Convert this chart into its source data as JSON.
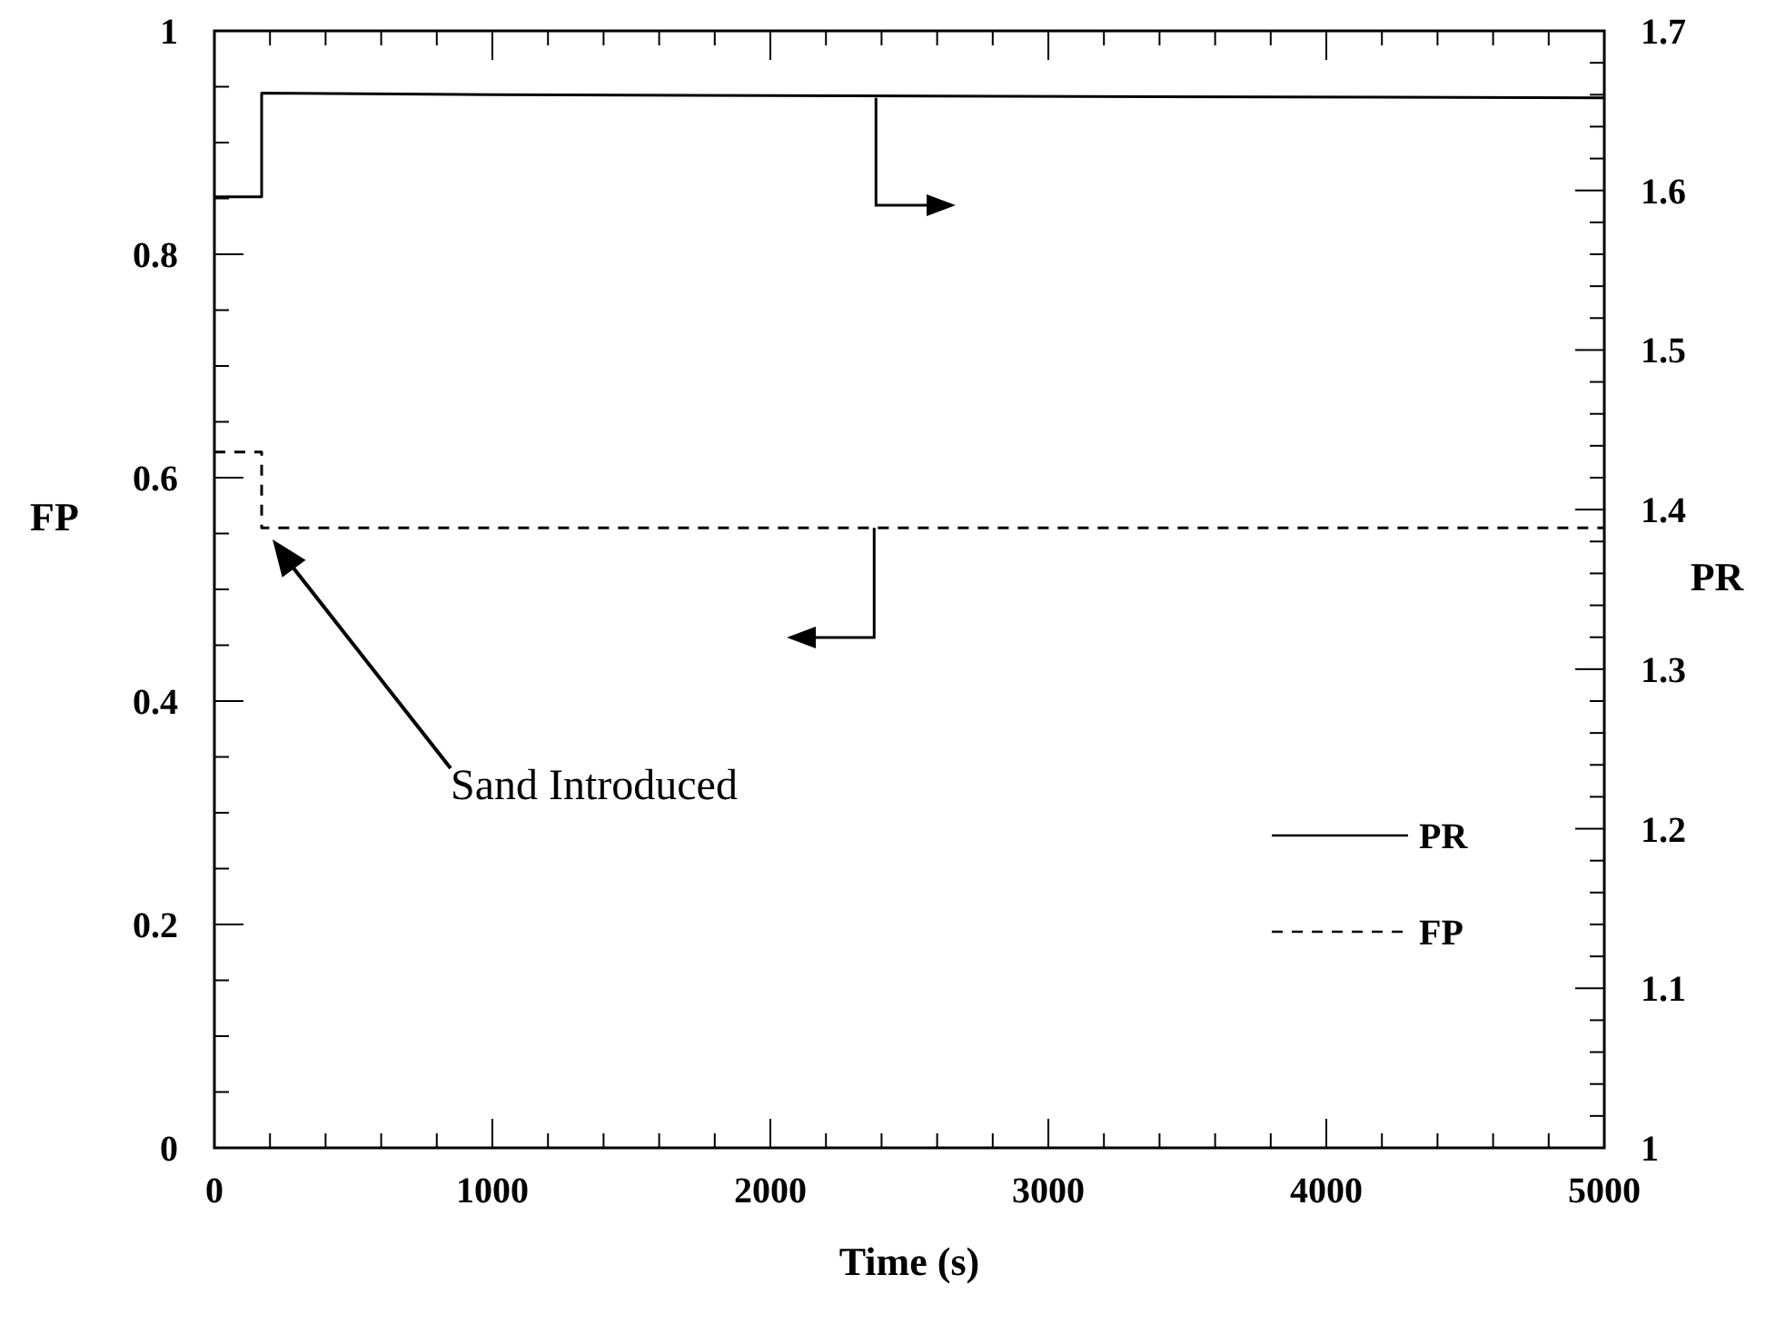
{
  "chart_data": {
    "type": "line",
    "xlabel": "Time (s)",
    "ylabel": "FP",
    "y2label": "PR",
    "xlim": [
      0,
      5000
    ],
    "xticks": [
      0,
      {
        "value": 200,
        "label": null
      },
      {
        "value": 400,
        "label": null
      },
      {
        "value": 600,
        "label": null
      },
      {
        "value": 800,
        "label": null
      },
      1000,
      {
        "value": 1200,
        "label": null
      },
      {
        "value": 1400,
        "label": null
      },
      {
        "value": 1600,
        "label": null
      },
      {
        "value": 1800,
        "label": null
      },
      2000,
      {
        "value": 2200,
        "label": null
      },
      {
        "value": 2400,
        "label": null
      },
      {
        "value": 2600,
        "label": null
      },
      {
        "value": 2800,
        "label": null
      },
      3000,
      {
        "value": 3200,
        "label": null
      },
      {
        "value": 3400,
        "label": null
      },
      {
        "value": 3600,
        "label": null
      },
      {
        "value": 3800,
        "label": null
      },
      4000,
      {
        "value": 4200,
        "label": null
      },
      {
        "value": 4400,
        "label": null
      },
      {
        "value": 4600,
        "label": null
      },
      {
        "value": 4800,
        "label": null
      },
      5000
    ],
    "ylim": [
      0,
      1
    ],
    "yticks": [
      0,
      {
        "value": 0.05,
        "label": null
      },
      {
        "value": 0.1,
        "label": null
      },
      {
        "value": 0.15,
        "label": null
      },
      0.2,
      {
        "value": 0.25,
        "label": null
      },
      {
        "value": 0.3,
        "label": null
      },
      {
        "value": 0.35,
        "label": null
      },
      0.4,
      {
        "value": 0.45,
        "label": null
      },
      {
        "value": 0.5,
        "label": null
      },
      {
        "value": 0.55,
        "label": null
      },
      0.6,
      {
        "value": 0.65,
        "label": null
      },
      {
        "value": 0.7,
        "label": null
      },
      {
        "value": 0.75,
        "label": null
      },
      0.8,
      {
        "value": 0.85,
        "label": null
      },
      {
        "value": 0.9,
        "label": null
      },
      {
        "value": 0.95,
        "label": null
      },
      1
    ],
    "y2lim": [
      1,
      1.7
    ],
    "y2ticks": [
      1,
      {
        "value": 1.02,
        "label": null
      },
      {
        "value": 1.04,
        "label": null
      },
      {
        "value": 1.06,
        "label": null
      },
      {
        "value": 1.08,
        "label": null
      },
      1.1,
      {
        "value": 1.12,
        "label": null
      },
      {
        "value": 1.14,
        "label": null
      },
      {
        "value": 1.16,
        "label": null
      },
      {
        "value": 1.18,
        "label": null
      },
      1.2,
      {
        "value": 1.22,
        "label": null
      },
      {
        "value": 1.24,
        "label": null
      },
      {
        "value": 1.26,
        "label": null
      },
      {
        "value": 1.28,
        "label": null
      },
      1.3,
      {
        "value": 1.32,
        "label": null
      },
      {
        "value": 1.34,
        "label": null
      },
      {
        "value": 1.36,
        "label": null
      },
      {
        "value": 1.38,
        "label": null
      },
      1.4,
      {
        "value": 1.42,
        "label": null
      },
      {
        "value": 1.44,
        "label": null
      },
      {
        "value": 1.46,
        "label": null
      },
      {
        "value": 1.48,
        "label": null
      },
      1.5,
      {
        "value": 1.52,
        "label": null
      },
      {
        "value": 1.54,
        "label": null
      },
      {
        "value": 1.56,
        "label": null
      },
      {
        "value": 1.58,
        "label": null
      },
      1.6,
      {
        "value": 1.62,
        "label": null
      },
      {
        "value": 1.64,
        "label": null
      },
      {
        "value": 1.66,
        "label": null
      },
      {
        "value": 1.68,
        "label": null
      },
      1.7
    ],
    "series": [
      {
        "name": "PR",
        "color": "#000000",
        "axis": "y2",
        "line_style": "solid",
        "x": [
          0,
          170,
          170,
          1000,
          5000
        ],
        "values": [
          1.596,
          1.596,
          1.661,
          1.66,
          1.658
        ]
      },
      {
        "name": "FP",
        "color": "#000000",
        "line_style": "dashed",
        "x": [
          0,
          170,
          170,
          5000
        ],
        "values": [
          0.623,
          0.623,
          0.555,
          0.555
        ]
      }
    ],
    "annotations": [
      "Sand Introduced"
    ],
    "legend": "right",
    "grid": false,
    "marker": "none"
  }
}
